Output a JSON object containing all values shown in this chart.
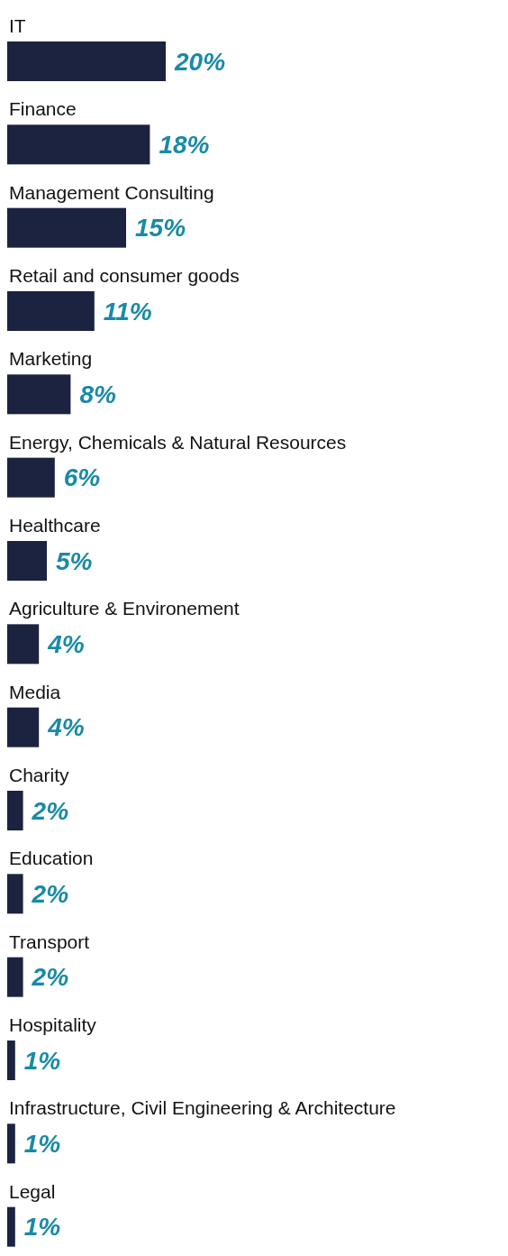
{
  "chart_data": {
    "type": "bar",
    "orientation": "horizontal",
    "categories": [
      "IT",
      "Finance",
      "Management Consulting",
      "Retail and consumer goods",
      "Marketing",
      "Energy, Chemicals & Natural Resources",
      "Healthcare",
      "Agriculture & Environement",
      "Media",
      "Charity",
      "Education",
      "Transport",
      "Hospitality",
      "Infrastructure, Civil Engineering & Architecture",
      "Legal"
    ],
    "values": [
      20,
      18,
      15,
      11,
      8,
      6,
      5,
      4,
      4,
      2,
      2,
      2,
      1,
      1,
      1
    ],
    "value_labels": [
      "20%",
      "18%",
      "15%",
      "11%",
      "8%",
      "6%",
      "5%",
      "4%",
      "4%",
      "2%",
      "2%",
      "2%",
      "1%",
      "1%",
      "1%"
    ],
    "color": "#1b2340"
  }
}
